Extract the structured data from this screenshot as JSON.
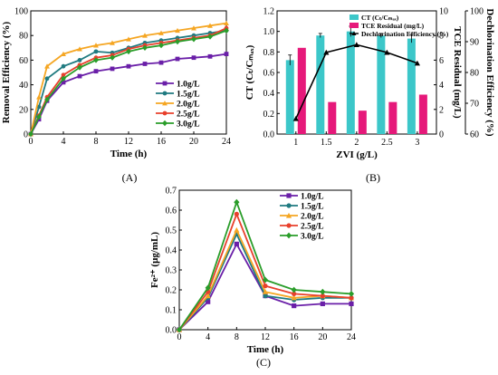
{
  "panels": {
    "A": {
      "caption": "(A)"
    },
    "B": {
      "caption": "(B)"
    },
    "C": {
      "caption": "(C)"
    }
  },
  "chart_data": [
    {
      "id": "A",
      "type": "line",
      "xlabel": "Time (h)",
      "ylabel": "Removal Efficiency (%)",
      "xlim": [
        0,
        24
      ],
      "ylim": [
        0,
        100
      ],
      "xticks": [
        0,
        4,
        8,
        12,
        16,
        20,
        24
      ],
      "yticks": [
        0,
        20,
        40,
        60,
        80,
        100
      ],
      "legend_position": "bottom-right",
      "x": [
        0,
        1,
        2,
        4,
        6,
        8,
        10,
        12,
        14,
        16,
        18,
        20,
        22,
        24
      ],
      "series": [
        {
          "name": "1.0g/L",
          "color": "#6a1fa8",
          "marker": "square",
          "values": [
            0,
            12,
            27,
            42,
            47,
            51,
            53,
            55,
            57,
            58,
            61,
            62,
            63,
            65
          ]
        },
        {
          "name": "1.5g/L",
          "color": "#1f7a80",
          "marker": "circle",
          "values": [
            0,
            22,
            45,
            55,
            60,
            67,
            66,
            70,
            74,
            76,
            78,
            80,
            82,
            84
          ]
        },
        {
          "name": "2.0g/L",
          "color": "#f5a623",
          "marker": "triangle",
          "values": [
            0,
            30,
            55,
            65,
            69,
            72,
            74,
            77,
            80,
            82,
            84,
            86,
            88,
            90
          ]
        },
        {
          "name": "2.5g/L",
          "color": "#e8402c",
          "marker": "circle",
          "values": [
            0,
            15,
            30,
            48,
            56,
            62,
            64,
            69,
            72,
            74,
            76,
            78,
            80,
            86
          ]
        },
        {
          "name": "3.0g/L",
          "color": "#2a9d2a",
          "marker": "diamond",
          "values": [
            0,
            14,
            28,
            45,
            54,
            60,
            62,
            67,
            70,
            72,
            75,
            77,
            79,
            84
          ]
        }
      ]
    },
    {
      "id": "B",
      "type": "bar",
      "xlabel": "ZVI (g/L)",
      "ylabel": "CT (Cₜ/Cₘₐₓ)",
      "y2label": "TCE Residual (mg/L)",
      "y3label": "Dechlorination Efficiency (%)",
      "categories": [
        "1",
        "1.5",
        "2",
        "2.5",
        "3"
      ],
      "ylim": [
        0,
        1.2
      ],
      "yticks": [
        0,
        0.2,
        0.4,
        0.6,
        0.8,
        1.0,
        1.2
      ],
      "y2lim": [
        0,
        10
      ],
      "y2ticks": [
        0,
        2,
        4,
        6,
        8,
        10
      ],
      "y3lim": [
        60,
        100
      ],
      "y3ticks": [
        60,
        70,
        80,
        90,
        100
      ],
      "legend_position": "top-right",
      "series": [
        {
          "name": "CT (Cₜ/Cₘₐₓ)",
          "axis": "left",
          "color": "#3cc7c9",
          "values": [
            0.72,
            0.96,
            1.0,
            0.96,
            0.93
          ],
          "errors": [
            0.05,
            0.02,
            0.05,
            0.02,
            0.04
          ]
        },
        {
          "name": "TCE Residual (mg/L)",
          "axis": "right",
          "color": "#e6197a",
          "values": [
            7.0,
            2.6,
            1.9,
            2.6,
            3.2
          ],
          "errors": [
            0.1,
            0.1,
            0.1,
            0.1,
            0.1
          ]
        },
        {
          "name": "Dechlorination Efficiency (%)",
          "axis": "right-outer",
          "color": "#000000",
          "values": [
            65,
            86.5,
            89,
            86.5,
            83
          ]
        }
      ]
    },
    {
      "id": "C",
      "type": "line",
      "xlabel": "Time (h)",
      "ylabel": "Fe²⁺ (μg/mL)",
      "xlim": [
        0,
        24
      ],
      "ylim": [
        0,
        0.7
      ],
      "xticks": [
        0,
        4,
        8,
        12,
        16,
        20,
        24
      ],
      "yticks": [
        0.0,
        0.1,
        0.2,
        0.3,
        0.4,
        0.5,
        0.6,
        0.7
      ],
      "legend_position": "top-right",
      "x": [
        0,
        4,
        8,
        12,
        16,
        20,
        24
      ],
      "series": [
        {
          "name": "1.0g/L",
          "color": "#6a1fa8",
          "marker": "square",
          "values": [
            0,
            0.14,
            0.43,
            0.17,
            0.12,
            0.13,
            0.13
          ]
        },
        {
          "name": "1.5g/L",
          "color": "#1f7a80",
          "marker": "circle",
          "values": [
            0,
            0.16,
            0.48,
            0.17,
            0.15,
            0.16,
            0.16
          ]
        },
        {
          "name": "2.0g/L",
          "color": "#f5a623",
          "marker": "triangle",
          "values": [
            0,
            0.17,
            0.5,
            0.19,
            0.16,
            0.17,
            0.16
          ]
        },
        {
          "name": "2.5g/L",
          "color": "#e8402c",
          "marker": "circle",
          "values": [
            0,
            0.19,
            0.58,
            0.22,
            0.18,
            0.17,
            0.16
          ]
        },
        {
          "name": "3.0g/L",
          "color": "#2a9d2a",
          "marker": "diamond",
          "values": [
            0,
            0.21,
            0.64,
            0.25,
            0.2,
            0.19,
            0.18
          ]
        }
      ]
    }
  ]
}
